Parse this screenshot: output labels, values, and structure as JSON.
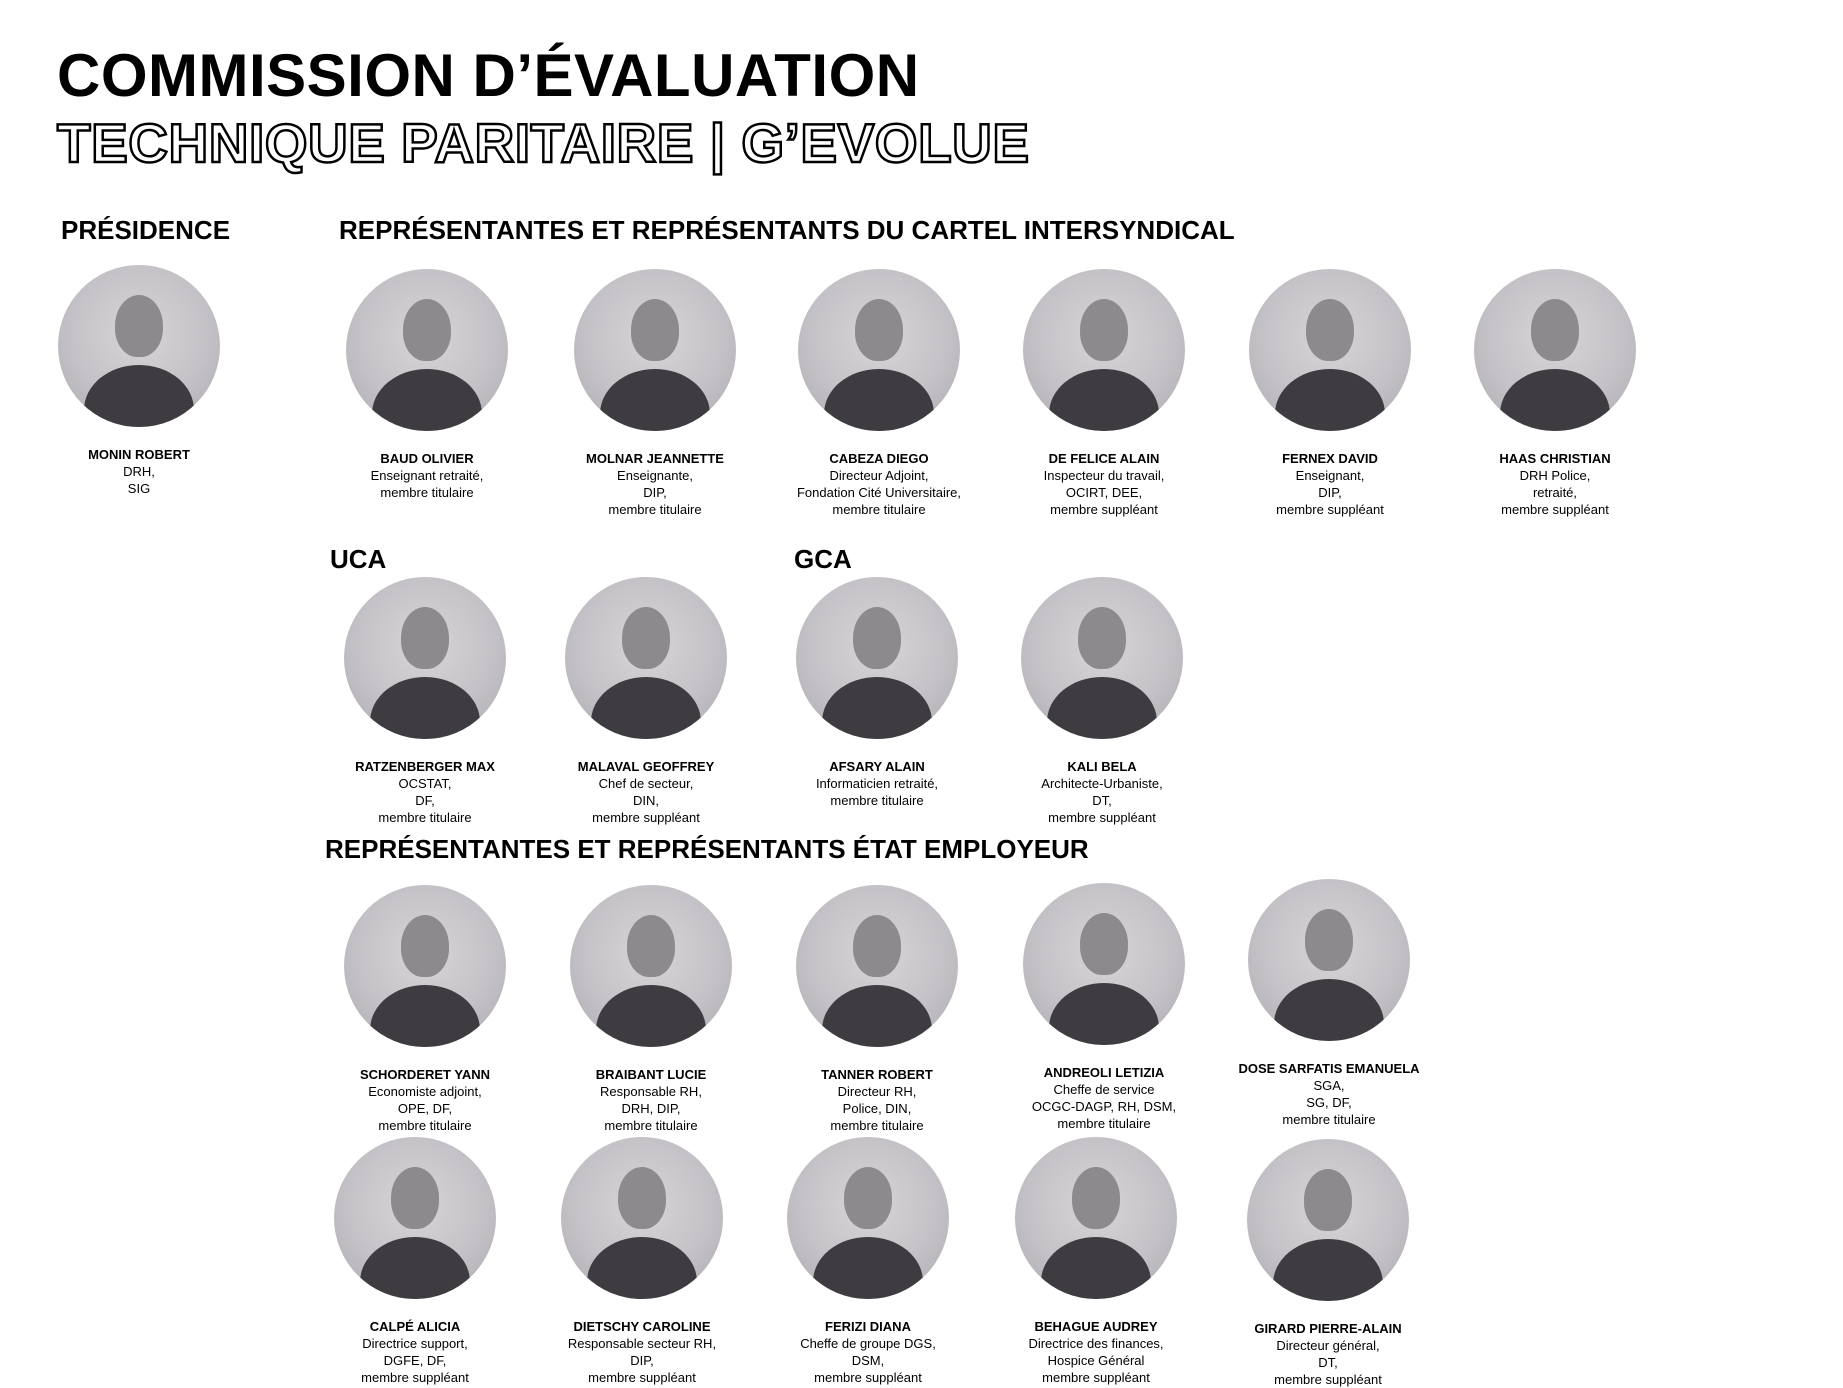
{
  "title": {
    "line1": "COMMISSION D’ÉVALUATION",
    "line2": "TECHNIQUE PARITAIRE | G’EVOLUE"
  },
  "sections": {
    "presidence": "PRÉSIDENCE",
    "cartel": "REPRÉSENTANTES ET REPRÉSENTANTS DU CARTEL INTERSYNDICAL",
    "uca": "UCA",
    "gca": "GCA",
    "etat": "REPRÉSENTANTES ET REPRÉSENTANTS ÉTAT EMPLOYEUR"
  },
  "members": {
    "monin": {
      "name": "MONIN ROBERT",
      "lines": [
        "DRH,",
        "SIG"
      ]
    },
    "baud": {
      "name": "BAUD OLIVIER",
      "lines": [
        "Enseignant retraité,",
        "membre titulaire"
      ]
    },
    "molnar": {
      "name": "MOLNAR JEANNETTE",
      "lines": [
        "Enseignante,",
        "DIP,",
        "membre titulaire"
      ]
    },
    "cabeza": {
      "name": "CABEZA DIEGO",
      "lines": [
        "Directeur Adjoint,",
        "Fondation Cité Universitaire,",
        "membre titulaire"
      ]
    },
    "defelice": {
      "name": "DE FELICE ALAIN",
      "lines": [
        "Inspecteur du travail,",
        "OCIRT, DEE,",
        "membre suppléant"
      ]
    },
    "fernex": {
      "name": "FERNEX DAVID",
      "lines": [
        "Enseignant,",
        "DIP,",
        "membre suppléant"
      ]
    },
    "haas": {
      "name": "HAAS CHRISTIAN",
      "lines": [
        "DRH  Police,",
        "retraité,",
        "membre suppléant"
      ]
    },
    "ratzenberger": {
      "name": "RATZENBERGER MAX",
      "lines": [
        "OCSTAT,",
        "DF,",
        "membre titulaire"
      ]
    },
    "malaval": {
      "name": "MALAVAL GEOFFREY",
      "lines": [
        "Chef de secteur,",
        "DIN,",
        "membre suppléant"
      ]
    },
    "afsary": {
      "name": "AFSARY ALAIN",
      "lines": [
        "Informaticien retraité,",
        "membre titulaire"
      ]
    },
    "kali": {
      "name": "KALI  BELA",
      "lines": [
        "Architecte-Urbaniste,",
        "DT,",
        "membre suppléant"
      ]
    },
    "schorderet": {
      "name": "SCHORDERET YANN",
      "lines": [
        "Economiste adjoint,",
        "OPE, DF,",
        "membre titulaire"
      ]
    },
    "braibant": {
      "name": "BRAIBANT LUCIE",
      "lines": [
        "Responsable RH,",
        "DRH, DIP,",
        "membre titulaire"
      ]
    },
    "tanner": {
      "name": "TANNER ROBERT",
      "lines": [
        "Directeur RH,",
        "Police, DIN,",
        "membre titulaire"
      ]
    },
    "andreoli": {
      "name": "ANDREOLI  LETIZIA",
      "lines": [
        "Cheffe de service",
        "OCGC-DAGP, RH, DSM,",
        "membre titulaire"
      ]
    },
    "dose": {
      "name": "DOSE SARFATIS EMANUELA",
      "lines": [
        "SGA,",
        "SG, DF,",
        "membre titulaire"
      ]
    },
    "calpe": {
      "name": "CALPÉ ALICIA",
      "lines": [
        "Directrice support,",
        "DGFE, DF,",
        "membre suppléant"
      ]
    },
    "dietschy": {
      "name": "DIETSCHY CAROLINE",
      "lines": [
        "Responsable secteur RH,",
        "DIP,",
        "membre suppléant"
      ]
    },
    "ferizi": {
      "name": "FERIZI DIANA",
      "lines": [
        "Cheffe de groupe DGS,",
        "DSM,",
        "membre suppléant"
      ]
    },
    "behague": {
      "name": "BEHAGUE AUDREY",
      "lines": [
        "Directrice des finances,",
        "Hospice Général",
        "membre suppléant"
      ]
    },
    "girard": {
      "name": "GIRARD PIERRE-ALAIN",
      "lines": [
        "Directeur général,",
        "DT,",
        "membre suppléant"
      ]
    }
  },
  "colors": {
    "text": "#000000",
    "background": "#ffffff",
    "photo_tone": "#c4c2c6"
  }
}
